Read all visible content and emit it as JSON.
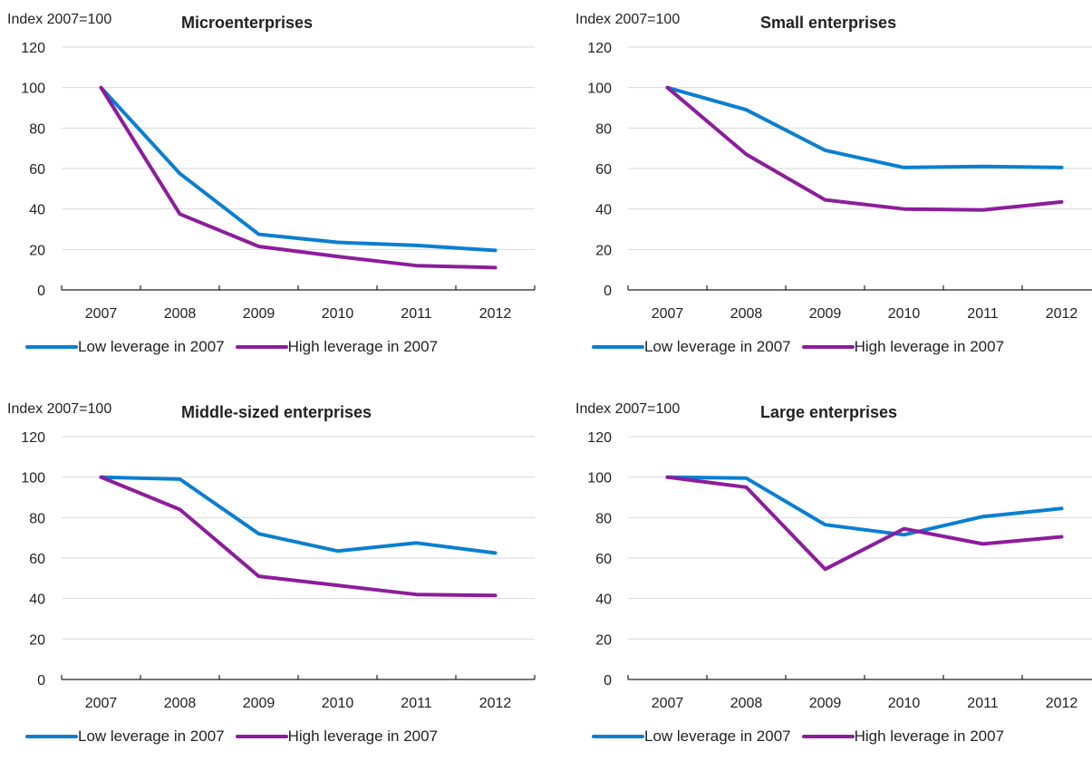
{
  "colors": {
    "low": "#0a7fd1",
    "high": "#8c1d9b",
    "grid": "#d9d9d9",
    "axis": "#222222"
  },
  "y_unit_label": "Index 2007=100",
  "chart_data": [
    {
      "type": "line",
      "title": "Microenterprises",
      "ylabel": "Index 2007=100",
      "categories": [
        "2007",
        "2008",
        "2009",
        "2010",
        "2011",
        "2012"
      ],
      "ylim": [
        0,
        120
      ],
      "yticks": [
        0,
        20,
        40,
        60,
        80,
        100,
        120
      ],
      "series": [
        {
          "name": "Low leverage in 2007",
          "values": [
            100,
            57.5,
            27.5,
            23.5,
            22,
            19.5
          ]
        },
        {
          "name": "High leverage in 2007",
          "values": [
            100,
            37.5,
            21.5,
            16.5,
            12,
            11
          ]
        }
      ]
    },
    {
      "type": "line",
      "title": "Small enterprises",
      "ylabel": "Index 2007=100",
      "categories": [
        "2007",
        "2008",
        "2009",
        "2010",
        "2011",
        "2012"
      ],
      "ylim": [
        0,
        120
      ],
      "yticks": [
        0,
        20,
        40,
        60,
        80,
        100,
        120
      ],
      "series": [
        {
          "name": "Low leverage in 2007",
          "values": [
            100,
            89,
            69,
            60.5,
            61,
            60.5
          ]
        },
        {
          "name": "High leverage in 2007",
          "values": [
            100,
            67,
            44.5,
            40,
            39.5,
            43.5
          ]
        }
      ]
    },
    {
      "type": "line",
      "title": "Middle-sized enterprises",
      "ylabel": "Index 2007=100",
      "categories": [
        "2007",
        "2008",
        "2009",
        "2010",
        "2011",
        "2012"
      ],
      "ylim": [
        0,
        120
      ],
      "yticks": [
        0,
        20,
        40,
        60,
        80,
        100,
        120
      ],
      "series": [
        {
          "name": "Low leverage in 2007",
          "values": [
            100,
            99,
            72,
            63.5,
            67.5,
            62.5
          ]
        },
        {
          "name": "High leverage in 2007",
          "values": [
            100,
            84,
            51,
            46.5,
            42,
            41.5
          ]
        }
      ]
    },
    {
      "type": "line",
      "title": "Large enterprises",
      "ylabel": "Index 2007=100",
      "categories": [
        "2007",
        "2008",
        "2009",
        "2010",
        "2011",
        "2012"
      ],
      "ylim": [
        0,
        120
      ],
      "yticks": [
        0,
        20,
        40,
        60,
        80,
        100,
        120
      ],
      "series": [
        {
          "name": "Low leverage in 2007",
          "values": [
            100,
            99.5,
            76.5,
            71.5,
            80.5,
            84.5
          ]
        },
        {
          "name": "High leverage in 2007",
          "values": [
            100,
            95,
            54.5,
            74.5,
            67,
            70.5
          ]
        }
      ]
    }
  ]
}
